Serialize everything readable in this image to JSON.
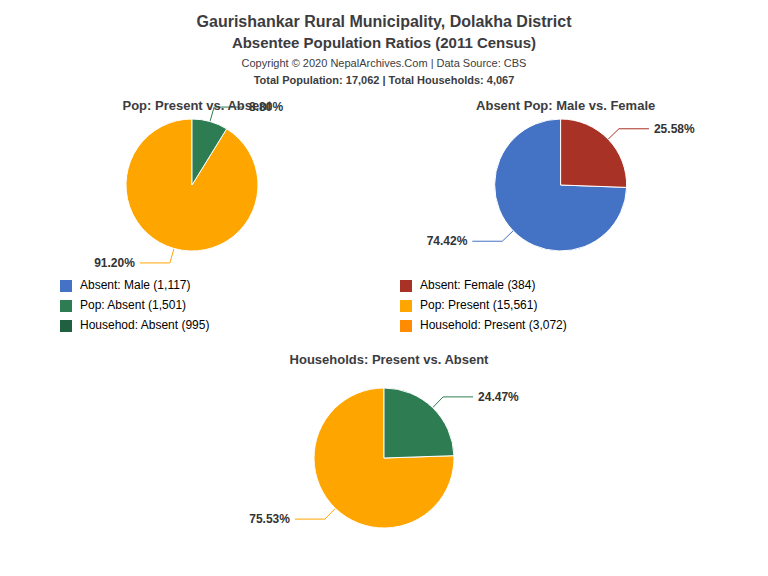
{
  "title": "Gaurishankar Rural Municipality, Dolakha District",
  "subtitle": "Absentee Population Ratios (2011 Census)",
  "annotations": [
    "Copyright © 2020 NepalArchives.Com | Data Source: CBS",
    "Total Population: 17,062 | Total Households: 4,067"
  ],
  "legend_items": [
    {
      "label": "Absent: Male (1,117)",
      "color": "#4472C4"
    },
    {
      "label": "Absent: Female (384)",
      "color": "#A93226"
    },
    {
      "label": "Pop: Absent (1,501)",
      "color": "#2E7D52"
    },
    {
      "label": "Pop: Present (15,561)",
      "color": "#FFA500"
    },
    {
      "label": "Househod: Absent (995)",
      "color": "#1F6040"
    },
    {
      "label": "Household: Present (3,072)",
      "color": "#FF8C00"
    }
  ],
  "chart_data": [
    {
      "type": "pie",
      "title": "Pop: Present vs. Absent",
      "values": [
        91.2,
        8.8
      ],
      "value_labels": [
        "91.20%",
        "8.80%"
      ],
      "colors": [
        "#FFA500",
        "#2E7D52"
      ],
      "data_labels": true
    },
    {
      "type": "pie",
      "title": "Absent Pop: Male vs. Female",
      "values": [
        74.42,
        25.58
      ],
      "value_labels": [
        "74.42%",
        "25.58%"
      ],
      "colors": [
        "#4472C4",
        "#A93226"
      ],
      "data_labels": true
    },
    {
      "type": "pie",
      "title": "Households: Present vs. Absent",
      "values": [
        75.53,
        24.47
      ],
      "value_labels": [
        "75.53%",
        "24.47%"
      ],
      "colors": [
        "#FFA500",
        "#2E7D52"
      ],
      "data_labels": true
    }
  ]
}
